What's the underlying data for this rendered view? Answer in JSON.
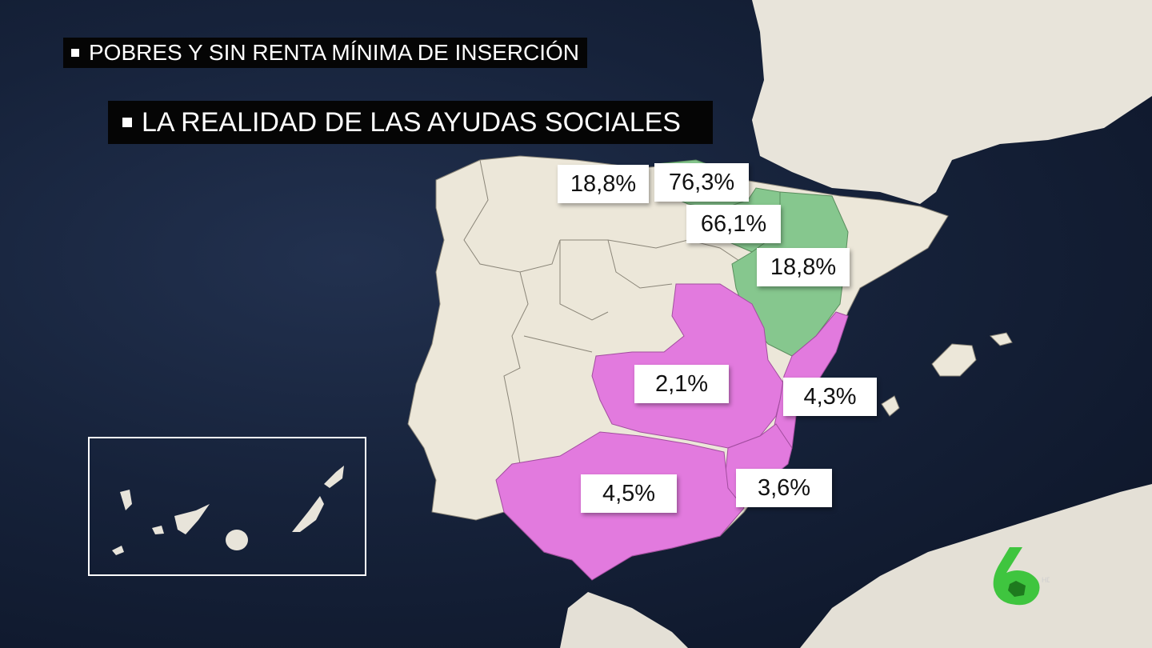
{
  "titles": {
    "line1": "POBRES Y SIN RENTA MÍNIMA DE INSERCIÓN",
    "line2": "LA REALIDAD DE LAS AYUDAS SOCIALES"
  },
  "colors": {
    "sea": "#16223a",
    "land": "#ece7d9",
    "green_regions": "#86c78e",
    "magenta_regions": "#e27ade",
    "logo_green": "#3fc53f"
  },
  "regions": [
    {
      "name": "Cantabria",
      "group": "none",
      "label": "18,8%"
    },
    {
      "name": "País Vasco",
      "group": "green",
      "label": "76,3%"
    },
    {
      "name": "Navarra",
      "group": "green",
      "label": "66,1%"
    },
    {
      "name": "Aragón",
      "group": "green",
      "label": "18,8%"
    },
    {
      "name": "Castilla-La Mancha",
      "group": "magenta",
      "label": "2,1%"
    },
    {
      "name": "Comunidad Valenciana",
      "group": "magenta",
      "label": "4,3%"
    },
    {
      "name": "Andalucía",
      "group": "magenta",
      "label": "4,5%"
    },
    {
      "name": "Murcia",
      "group": "magenta",
      "label": "3,6%"
    }
  ],
  "inset": {
    "name": "Canarias"
  },
  "logo": {
    "icon": "la-sexta-logo-icon"
  }
}
